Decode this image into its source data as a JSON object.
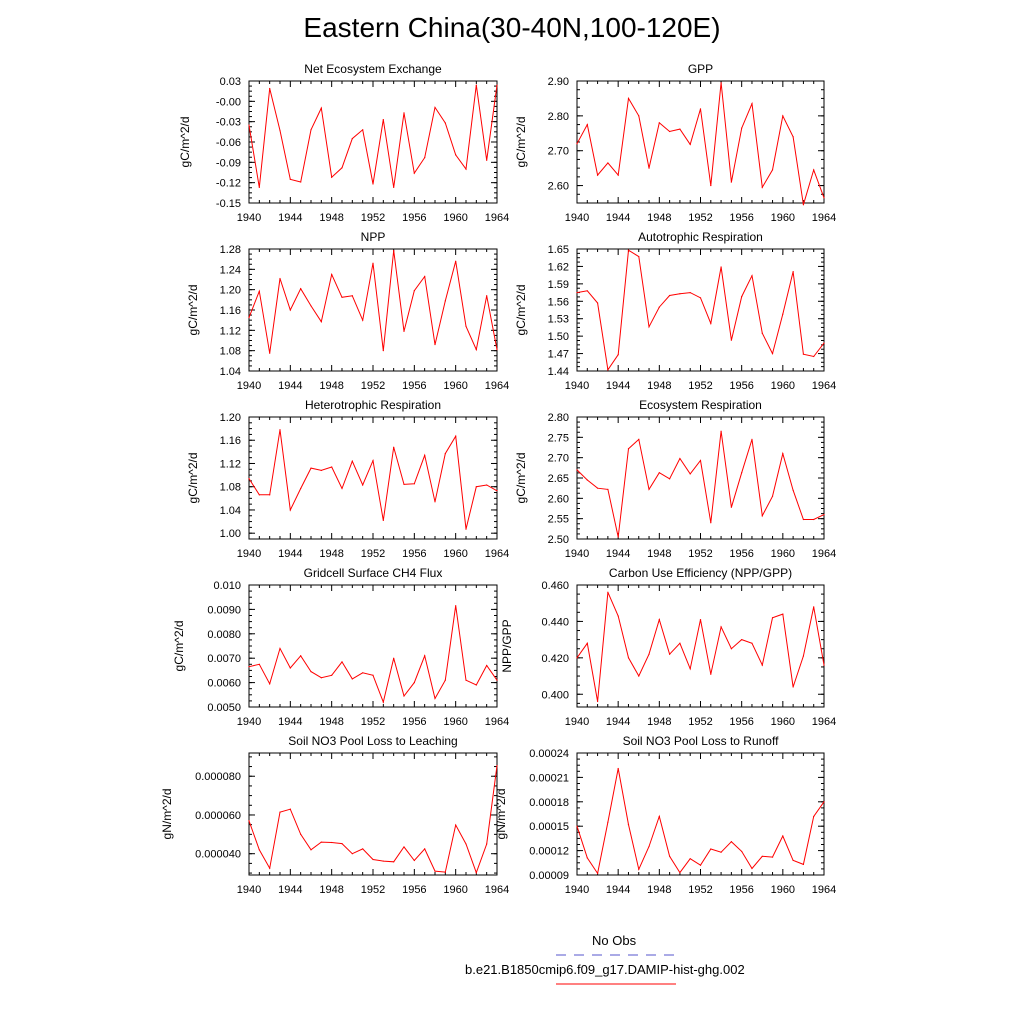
{
  "title": "Eastern China(30-40N,100-120E)",
  "colors": {
    "series": "#ff0000",
    "obs": "#5555cc",
    "axis": "#000000"
  },
  "legend": {
    "obs_label": "No Obs",
    "model_label": "b.e21.B1850cmip6.f09_g17.DAMIP-hist-ghg.002"
  },
  "chart_data": [
    {
      "type": "line",
      "title": "Net Ecosystem Exchange",
      "ylabel": "gC/m^2/d",
      "ylim": [
        -0.15,
        0.03
      ],
      "yticks": [
        "0.03",
        "-0.00",
        "-0.03",
        "-0.06",
        "-0.09",
        "-0.12",
        "-0.15"
      ],
      "yticks_values": [
        0.03,
        0.0,
        -0.03,
        -0.06,
        -0.09,
        -0.12,
        -0.15
      ],
      "xlim": [
        1940,
        1964
      ],
      "xticks": [
        "1940",
        "1944",
        "1948",
        "1952",
        "1956",
        "1960",
        "1964"
      ],
      "x": [
        1940,
        1941,
        1942,
        1943,
        1944,
        1945,
        1946,
        1947,
        1948,
        1949,
        1950,
        1951,
        1952,
        1953,
        1954,
        1955,
        1956,
        1957,
        1958,
        1959,
        1960,
        1961,
        1962,
        1963,
        1964
      ],
      "y": [
        -0.035,
        -0.127,
        0.019,
        -0.043,
        -0.115,
        -0.119,
        -0.042,
        -0.01,
        -0.112,
        -0.098,
        -0.055,
        -0.042,
        -0.122,
        -0.027,
        -0.127,
        -0.017,
        -0.106,
        -0.083,
        -0.009,
        -0.032,
        -0.079,
        -0.1,
        0.024,
        -0.087,
        0.024
      ]
    },
    {
      "type": "line",
      "title": "GPP",
      "ylabel": "gC/m^2/d",
      "ylim": [
        2.55,
        2.9
      ],
      "yticks": [
        "2.90",
        "2.80",
        "2.70",
        "2.60"
      ],
      "yticks_values": [
        2.9,
        2.8,
        2.7,
        2.6
      ],
      "xlim": [
        1940,
        1964
      ],
      "xticks": [
        "1940",
        "1944",
        "1948",
        "1952",
        "1956",
        "1960",
        "1964"
      ],
      "x": [
        1940,
        1941,
        1942,
        1943,
        1944,
        1945,
        1946,
        1947,
        1948,
        1949,
        1950,
        1951,
        1952,
        1953,
        1954,
        1955,
        1956,
        1957,
        1958,
        1959,
        1960,
        1961,
        1962,
        1963,
        1964
      ],
      "y": [
        2.72,
        2.775,
        2.63,
        2.665,
        2.63,
        2.85,
        2.8,
        2.65,
        2.78,
        2.755,
        2.762,
        2.718,
        2.82,
        2.6,
        2.895,
        2.61,
        2.765,
        2.835,
        2.595,
        2.645,
        2.8,
        2.74,
        2.545,
        2.645,
        2.565
      ]
    },
    {
      "type": "line",
      "title": "NPP",
      "ylabel": "gC/m^2/d",
      "ylim": [
        1.04,
        1.28
      ],
      "yticks": [
        "1.28",
        "1.24",
        "1.20",
        "1.16",
        "1.12",
        "1.08",
        "1.04"
      ],
      "yticks_values": [
        1.28,
        1.24,
        1.2,
        1.16,
        1.12,
        1.08,
        1.04
      ],
      "xlim": [
        1940,
        1964
      ],
      "xticks": [
        "1940",
        "1944",
        "1948",
        "1952",
        "1956",
        "1960",
        "1964"
      ],
      "x": [
        1940,
        1941,
        1942,
        1943,
        1944,
        1945,
        1946,
        1947,
        1948,
        1949,
        1950,
        1951,
        1952,
        1953,
        1954,
        1955,
        1956,
        1957,
        1958,
        1959,
        1960,
        1961,
        1962,
        1963,
        1964
      ],
      "y": [
        1.145,
        1.197,
        1.075,
        1.222,
        1.16,
        1.202,
        1.168,
        1.137,
        1.23,
        1.185,
        1.188,
        1.14,
        1.252,
        1.08,
        1.277,
        1.118,
        1.198,
        1.226,
        1.092,
        1.178,
        1.256,
        1.128,
        1.082,
        1.188,
        1.082
      ]
    },
    {
      "type": "line",
      "title": "Autotrophic Respiration",
      "ylabel": "gC/m^2/d",
      "ylim": [
        1.44,
        1.65
      ],
      "yticks": [
        "1.65",
        "1.62",
        "1.59",
        "1.56",
        "1.53",
        "1.50",
        "1.47",
        "1.44"
      ],
      "yticks_values": [
        1.65,
        1.62,
        1.59,
        1.56,
        1.53,
        1.5,
        1.47,
        1.44
      ],
      "xlim": [
        1940,
        1964
      ],
      "xticks": [
        "1940",
        "1944",
        "1948",
        "1952",
        "1956",
        "1960",
        "1964"
      ],
      "x": [
        1940,
        1941,
        1942,
        1943,
        1944,
        1945,
        1946,
        1947,
        1948,
        1949,
        1950,
        1951,
        1952,
        1953,
        1954,
        1955,
        1956,
        1957,
        1958,
        1959,
        1960,
        1961,
        1962,
        1963,
        1964
      ],
      "y": [
        1.575,
        1.578,
        1.557,
        1.442,
        1.468,
        1.648,
        1.637,
        1.516,
        1.55,
        1.57,
        1.573,
        1.575,
        1.566,
        1.522,
        1.619,
        1.493,
        1.568,
        1.604,
        1.505,
        1.47,
        1.538,
        1.611,
        1.469,
        1.465,
        1.488
      ]
    },
    {
      "type": "line",
      "title": "Heterotrophic Respiration",
      "ylabel": "gC/m^2/d",
      "ylim": [
        0.99,
        1.2
      ],
      "yticks": [
        "1.20",
        "1.16",
        "1.12",
        "1.08",
        "1.04",
        "1.00"
      ],
      "yticks_values": [
        1.2,
        1.16,
        1.12,
        1.08,
        1.04,
        1.0
      ],
      "xlim": [
        1940,
        1964
      ],
      "xticks": [
        "1940",
        "1944",
        "1948",
        "1952",
        "1956",
        "1960",
        "1964"
      ],
      "x": [
        1940,
        1941,
        1942,
        1943,
        1944,
        1945,
        1946,
        1947,
        1948,
        1949,
        1950,
        1951,
        1952,
        1953,
        1954,
        1955,
        1956,
        1957,
        1958,
        1959,
        1960,
        1961,
        1962,
        1963,
        1964
      ],
      "y": [
        1.094,
        1.066,
        1.066,
        1.178,
        1.04,
        1.077,
        1.112,
        1.108,
        1.114,
        1.077,
        1.124,
        1.083,
        1.125,
        1.022,
        1.148,
        1.084,
        1.085,
        1.134,
        1.054,
        1.137,
        1.167,
        1.007,
        1.08,
        1.083,
        1.073
      ]
    },
    {
      "type": "line",
      "title": "Ecosystem Respiration",
      "ylabel": "gC/m^2/d",
      "ylim": [
        2.5,
        2.8
      ],
      "yticks": [
        "2.80",
        "2.75",
        "2.70",
        "2.65",
        "2.60",
        "2.55",
        "2.50"
      ],
      "yticks_values": [
        2.8,
        2.75,
        2.7,
        2.65,
        2.6,
        2.55,
        2.5
      ],
      "xlim": [
        1940,
        1964
      ],
      "xticks": [
        "1940",
        "1944",
        "1948",
        "1952",
        "1956",
        "1960",
        "1964"
      ],
      "x": [
        1940,
        1941,
        1942,
        1943,
        1944,
        1945,
        1946,
        1947,
        1948,
        1949,
        1950,
        1951,
        1952,
        1953,
        1954,
        1955,
        1956,
        1957,
        1958,
        1959,
        1960,
        1961,
        1962,
        1963,
        1964
      ],
      "y": [
        2.67,
        2.645,
        2.625,
        2.622,
        2.505,
        2.722,
        2.745,
        2.622,
        2.663,
        2.648,
        2.698,
        2.66,
        2.693,
        2.54,
        2.765,
        2.578,
        2.663,
        2.745,
        2.557,
        2.605,
        2.71,
        2.62,
        2.548,
        2.548,
        2.56
      ]
    },
    {
      "type": "line",
      "title": "Gridcell Surface CH4 Flux",
      "ylabel": "gC/m^2/d",
      "ylim": [
        0.005,
        0.01
      ],
      "yticks": [
        "0.010",
        "0.0090",
        "0.0080",
        "0.0070",
        "0.0060",
        "0.0050"
      ],
      "yticks_values": [
        0.01,
        0.009,
        0.008,
        0.007,
        0.006,
        0.005
      ],
      "xlim": [
        1940,
        1964
      ],
      "xticks": [
        "1940",
        "1944",
        "1948",
        "1952",
        "1956",
        "1960",
        "1964"
      ],
      "x": [
        1940,
        1941,
        1942,
        1943,
        1944,
        1945,
        1946,
        1947,
        1948,
        1949,
        1950,
        1951,
        1952,
        1953,
        1954,
        1955,
        1956,
        1957,
        1958,
        1959,
        1960,
        1961,
        1962,
        1963,
        1964
      ],
      "y": [
        0.00665,
        0.00675,
        0.00595,
        0.0074,
        0.0066,
        0.0071,
        0.00645,
        0.0062,
        0.0063,
        0.00685,
        0.00615,
        0.0064,
        0.0063,
        0.0052,
        0.007,
        0.00545,
        0.006,
        0.0071,
        0.00535,
        0.0061,
        0.00915,
        0.0061,
        0.0059,
        0.0067,
        0.0061
      ]
    },
    {
      "type": "line",
      "title": "Carbon Use Efficiency (NPP/GPP)",
      "ylabel": "NPP/GPP",
      "ylim": [
        0.393,
        0.46
      ],
      "yticks": [
        "0.460",
        "0.440",
        "0.420",
        "0.400"
      ],
      "yticks_values": [
        0.46,
        0.44,
        0.42,
        0.4
      ],
      "xlim": [
        1940,
        1964
      ],
      "xticks": [
        "1940",
        "1944",
        "1948",
        "1952",
        "1956",
        "1960",
        "1964"
      ],
      "x": [
        1940,
        1941,
        1942,
        1943,
        1944,
        1945,
        1946,
        1947,
        1948,
        1949,
        1950,
        1951,
        1952,
        1953,
        1954,
        1955,
        1956,
        1957,
        1958,
        1959,
        1960,
        1961,
        1962,
        1963,
        1964
      ],
      "y": [
        0.42,
        0.428,
        0.396,
        0.456,
        0.443,
        0.42,
        0.41,
        0.422,
        0.441,
        0.422,
        0.428,
        0.414,
        0.441,
        0.411,
        0.437,
        0.425,
        0.43,
        0.428,
        0.416,
        0.442,
        0.444,
        0.404,
        0.421,
        0.448,
        0.416
      ]
    },
    {
      "type": "line",
      "title": "Soil NO3 Pool Loss to Leaching",
      "ylabel": "gN/m^2/d",
      "ylim": [
        2.9e-05,
        9.2e-05
      ],
      "yticks": [
        "0.000080",
        "0.000060",
        "0.000040"
      ],
      "yticks_values": [
        8e-05,
        6e-05,
        4e-05
      ],
      "xlim": [
        1940,
        1964
      ],
      "xticks": [
        "1940",
        "1944",
        "1948",
        "1952",
        "1956",
        "1960",
        "1964"
      ],
      "x": [
        1940,
        1941,
        1942,
        1943,
        1944,
        1945,
        1946,
        1947,
        1948,
        1949,
        1950,
        1951,
        1952,
        1953,
        1954,
        1955,
        1956,
        1957,
        1958,
        1959,
        1960,
        1961,
        1962,
        1963,
        1964
      ],
      "y": [
        5.7e-05,
        4.2e-05,
        3.25e-05,
        6.15e-05,
        6.3e-05,
        5e-05,
        4.2e-05,
        4.6e-05,
        4.58e-05,
        4.52e-05,
        4e-05,
        4.25e-05,
        3.7e-05,
        3.62e-05,
        3.58e-05,
        4.35e-05,
        3.65e-05,
        4.25e-05,
        3.1e-05,
        3.05e-05,
        5.48e-05,
        4.5e-05,
        3.02e-05,
        4.5e-05,
        8.55e-05
      ]
    },
    {
      "type": "line",
      "title": "Soil NO3 Pool Loss to Runoff",
      "ylabel": "gN/m^2/d",
      "ylim": [
        9e-05,
        0.00024
      ],
      "yticks": [
        "0.00024",
        "0.00021",
        "0.00018",
        "0.00015",
        "0.00012",
        "0.00009"
      ],
      "yticks_values": [
        0.00024,
        0.00021,
        0.00018,
        0.00015,
        0.00012,
        9e-05
      ],
      "xlim": [
        1940,
        1964
      ],
      "xticks": [
        "1940",
        "1944",
        "1948",
        "1952",
        "1956",
        "1960",
        "1964"
      ],
      "x": [
        1940,
        1941,
        1942,
        1943,
        1944,
        1945,
        1946,
        1947,
        1948,
        1949,
        1950,
        1951,
        1952,
        1953,
        1954,
        1955,
        1956,
        1957,
        1958,
        1959,
        1960,
        1961,
        1962,
        1963,
        1964
      ],
      "y": [
        0.00015,
        0.000111,
        9.2e-05,
        0.000155,
        0.000221,
        0.000152,
        9.7e-05,
        0.000125,
        0.000162,
        0.000113,
        9.3e-05,
        0.00011,
        0.000102,
        0.000122,
        0.000118,
        0.000131,
        0.000119,
        9.8e-05,
        0.000113,
        0.000112,
        0.000138,
        0.000108,
        0.000103,
        0.000162,
        0.00018
      ]
    }
  ]
}
